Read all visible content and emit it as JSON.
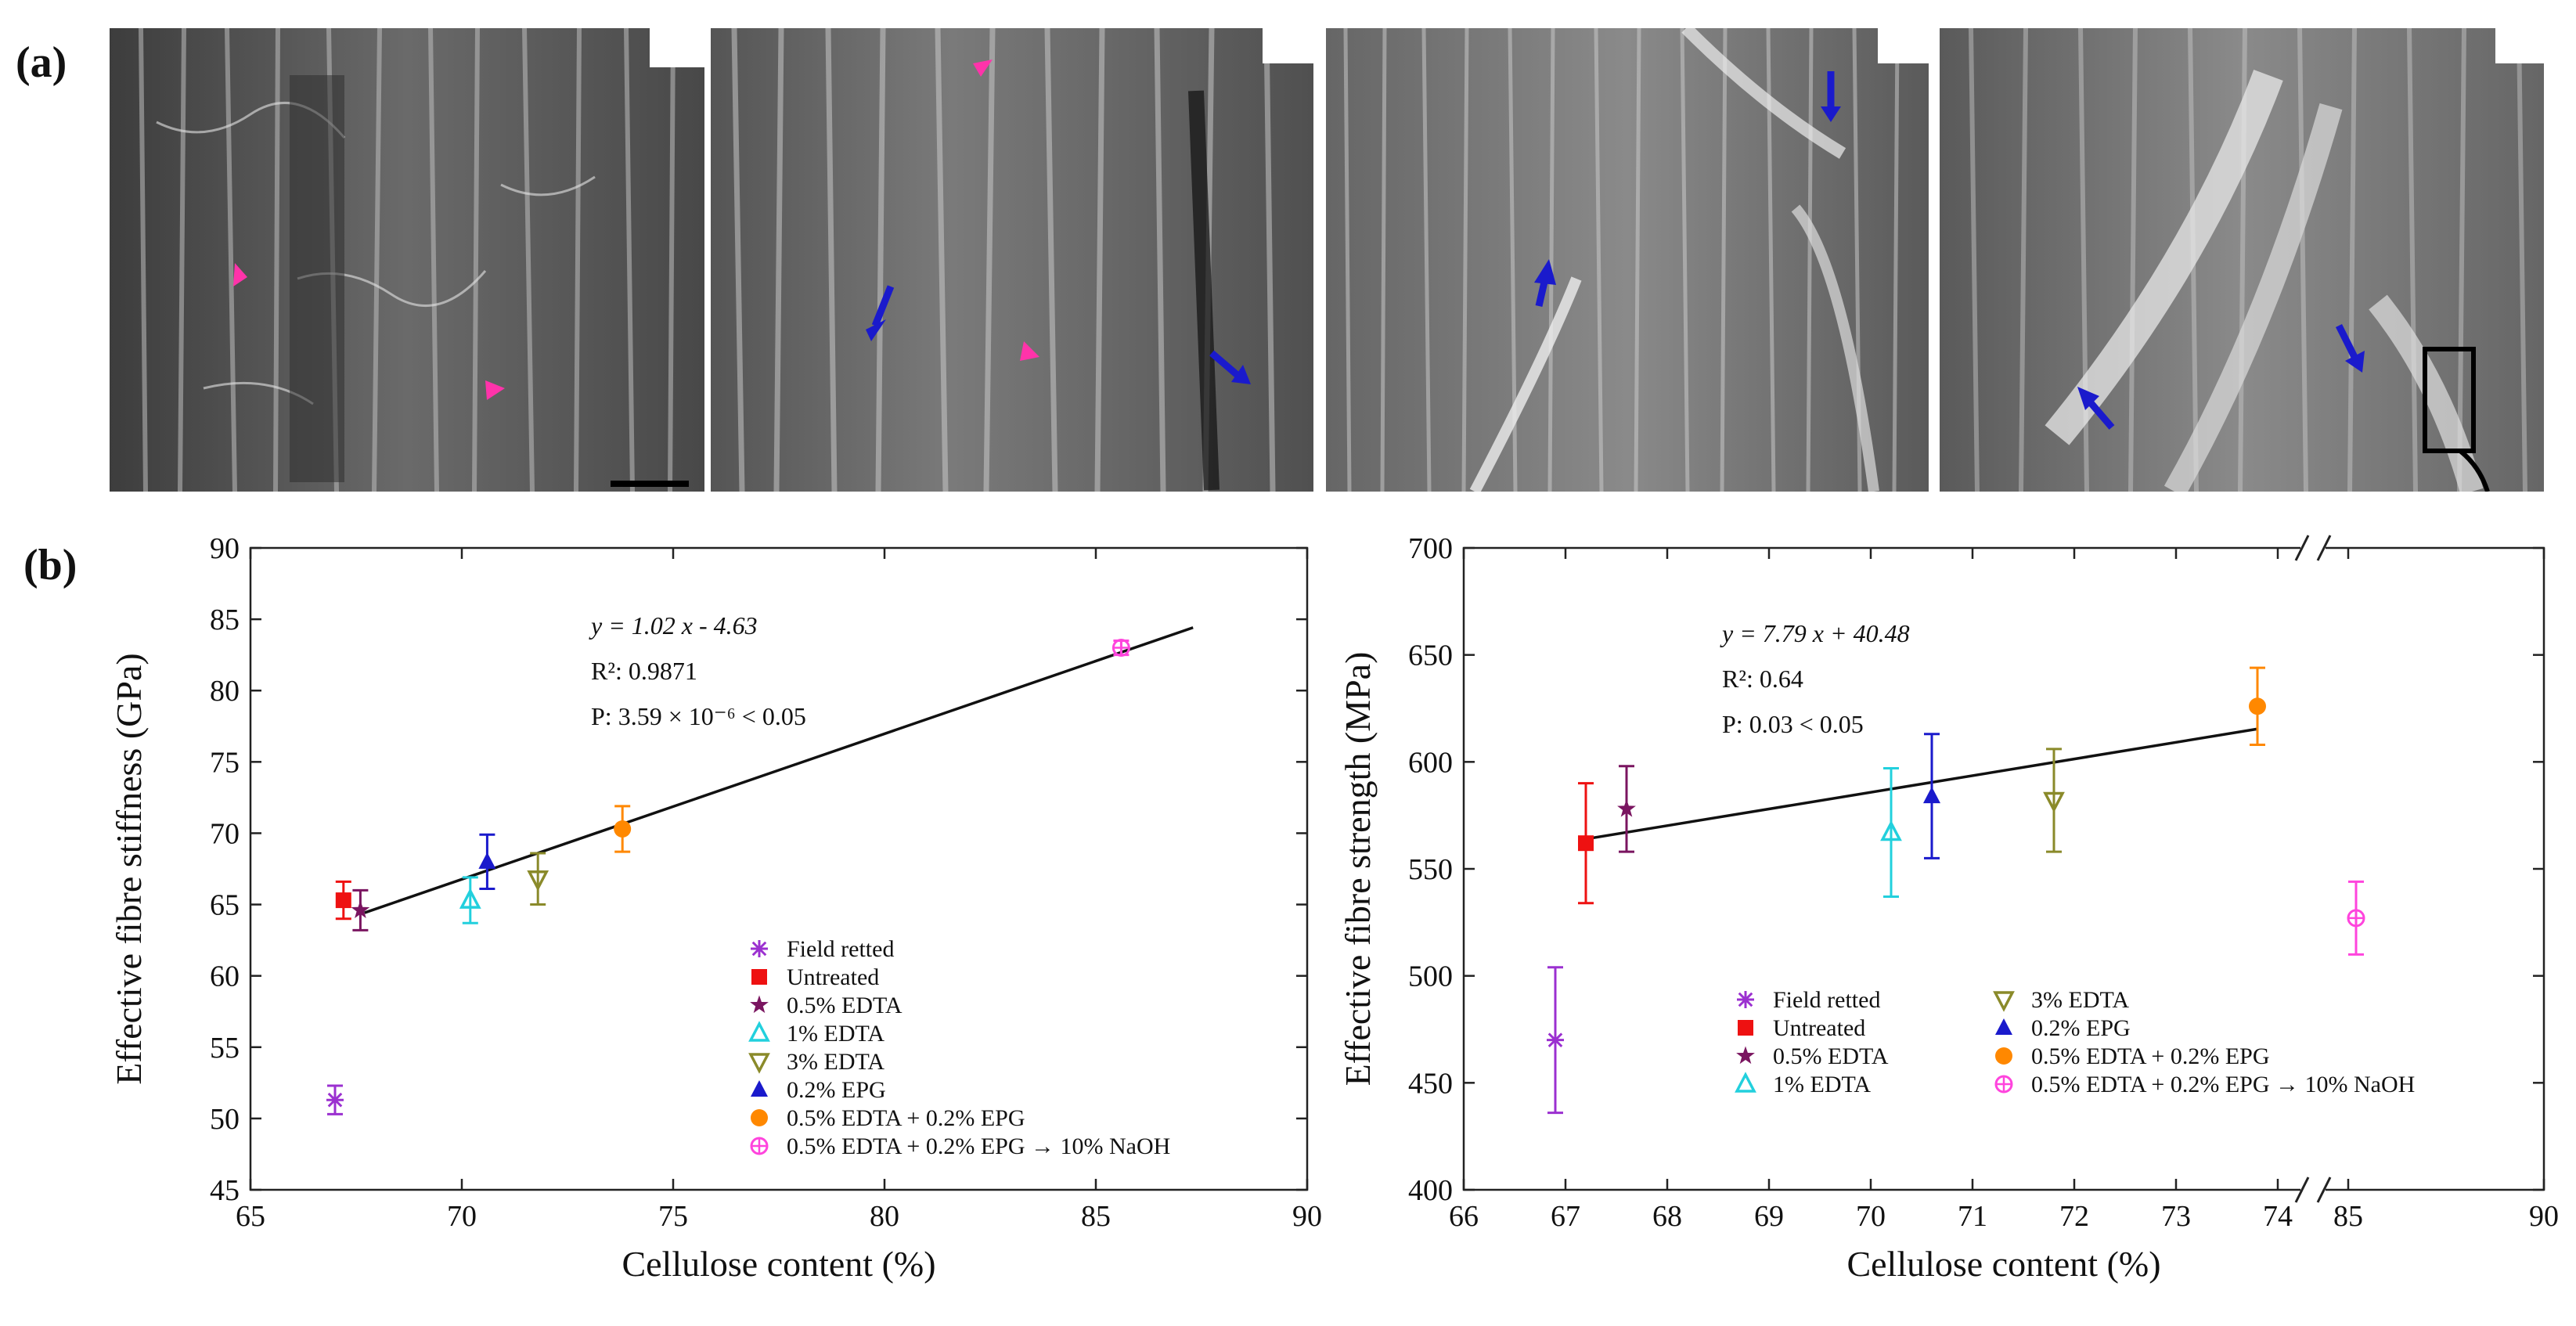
{
  "figure": {
    "label_a": "(a)",
    "label_b": "(b)"
  },
  "chart_data": [
    {
      "type": "scatter",
      "title": "",
      "xlabel": "Cellulose content (%)",
      "ylabel": "Effective fibre stiffness (GPa)",
      "xlim": [
        65,
        90
      ],
      "ylim": [
        45,
        90
      ],
      "xticks": [
        65,
        70,
        75,
        80,
        85,
        90
      ],
      "yticks": [
        45,
        50,
        55,
        60,
        65,
        70,
        75,
        80,
        85,
        90
      ],
      "grid": false,
      "legend_position": "lower-center",
      "annotation": {
        "line1": "y = 1.02 x - 4.63",
        "line2": "R²: 0.9871",
        "line3": "P: 3.59 × 10⁻⁶ < 0.05"
      },
      "fit": {
        "slope": 1.02,
        "intercept": -4.63,
        "x_range": [
          67.7,
          87.3
        ]
      },
      "series": [
        {
          "name": "Field retted",
          "marker": "asterisk",
          "color": "#9b30d0",
          "x": 67.0,
          "y": 51.3,
          "err": 1.0
        },
        {
          "name": "Untreated",
          "marker": "square",
          "color": "#ee1111",
          "x": 67.2,
          "y": 65.3,
          "err": 1.3
        },
        {
          "name": "0.5% EDTA",
          "marker": "star",
          "color": "#7a1560",
          "x": 67.6,
          "y": 64.6,
          "err": 1.4
        },
        {
          "name": "1% EDTA",
          "marker": "triangle-up-open",
          "color": "#22d0dd",
          "x": 70.2,
          "y": 65.3,
          "err": 1.6
        },
        {
          "name": "3% EDTA",
          "marker": "triangle-down-open",
          "color": "#8a8a2a",
          "x": 71.8,
          "y": 66.8,
          "err": 1.8
        },
        {
          "name": "0.2% EPG",
          "marker": "triangle-up",
          "color": "#1a1acc",
          "x": 70.6,
          "y": 68.0,
          "err": 1.9
        },
        {
          "name": "0.5% EDTA + 0.2% EPG",
          "marker": "circle",
          "color": "#ff8800",
          "x": 73.8,
          "y": 70.3,
          "err": 1.6
        },
        {
          "name": "0.5% EDTA + 0.2% EPG → 10% NaOH",
          "marker": "circle-open-cross",
          "color": "#ff44dd",
          "x": 85.6,
          "y": 83.0,
          "err": 0.5
        }
      ]
    },
    {
      "type": "scatter",
      "title": "",
      "xlabel": "Cellulose content (%)",
      "ylabel": "Effective fibre strength (MPa)",
      "xlim": [
        66,
        90
      ],
      "ylim": [
        400,
        700
      ],
      "xticks": [
        "66",
        "67",
        "68",
        "69",
        "70",
        "71",
        "72",
        "73",
        "74",
        "85",
        "90"
      ],
      "yticks": [
        400,
        450,
        500,
        550,
        600,
        650,
        700
      ],
      "axis_break": "between 74 and 85",
      "grid": false,
      "legend_position": "lower-right",
      "annotation": {
        "line1": "y = 7.79 x + 40.48",
        "line2": "R²: 0.64",
        "line3": "P: 0.03 < 0.05"
      },
      "fit": {
        "slope": 7.79,
        "intercept": 40.48,
        "x_range": [
          67.2,
          73.8
        ]
      },
      "series": [
        {
          "name": "Field retted",
          "marker": "asterisk",
          "color": "#9b30d0",
          "x": 66.9,
          "y": 470,
          "err": 34
        },
        {
          "name": "Untreated",
          "marker": "square",
          "color": "#ee1111",
          "x": 67.2,
          "y": 562,
          "err": 28
        },
        {
          "name": "0.5% EDTA",
          "marker": "star",
          "color": "#7a1560",
          "x": 67.6,
          "y": 578,
          "err": 20
        },
        {
          "name": "1% EDTA",
          "marker": "triangle-up-open",
          "color": "#22d0dd",
          "x": 70.2,
          "y": 567,
          "err": 30
        },
        {
          "name": "3% EDTA",
          "marker": "triangle-down-open",
          "color": "#8a8a2a",
          "x": 71.8,
          "y": 582,
          "err": 24
        },
        {
          "name": "0.2% EPG",
          "marker": "triangle-up",
          "color": "#1a1acc",
          "x": 70.6,
          "y": 584,
          "err": 29
        },
        {
          "name": "0.5% EDTA + 0.2% EPG",
          "marker": "circle",
          "color": "#ff8800",
          "x": 73.8,
          "y": 626,
          "err": 18
        },
        {
          "name": "0.5% EDTA + 0.2% EPG → 10% NaOH",
          "marker": "circle-open-cross",
          "color": "#ff44dd",
          "x": 85.2,
          "y": 527,
          "err": 17
        }
      ]
    }
  ]
}
